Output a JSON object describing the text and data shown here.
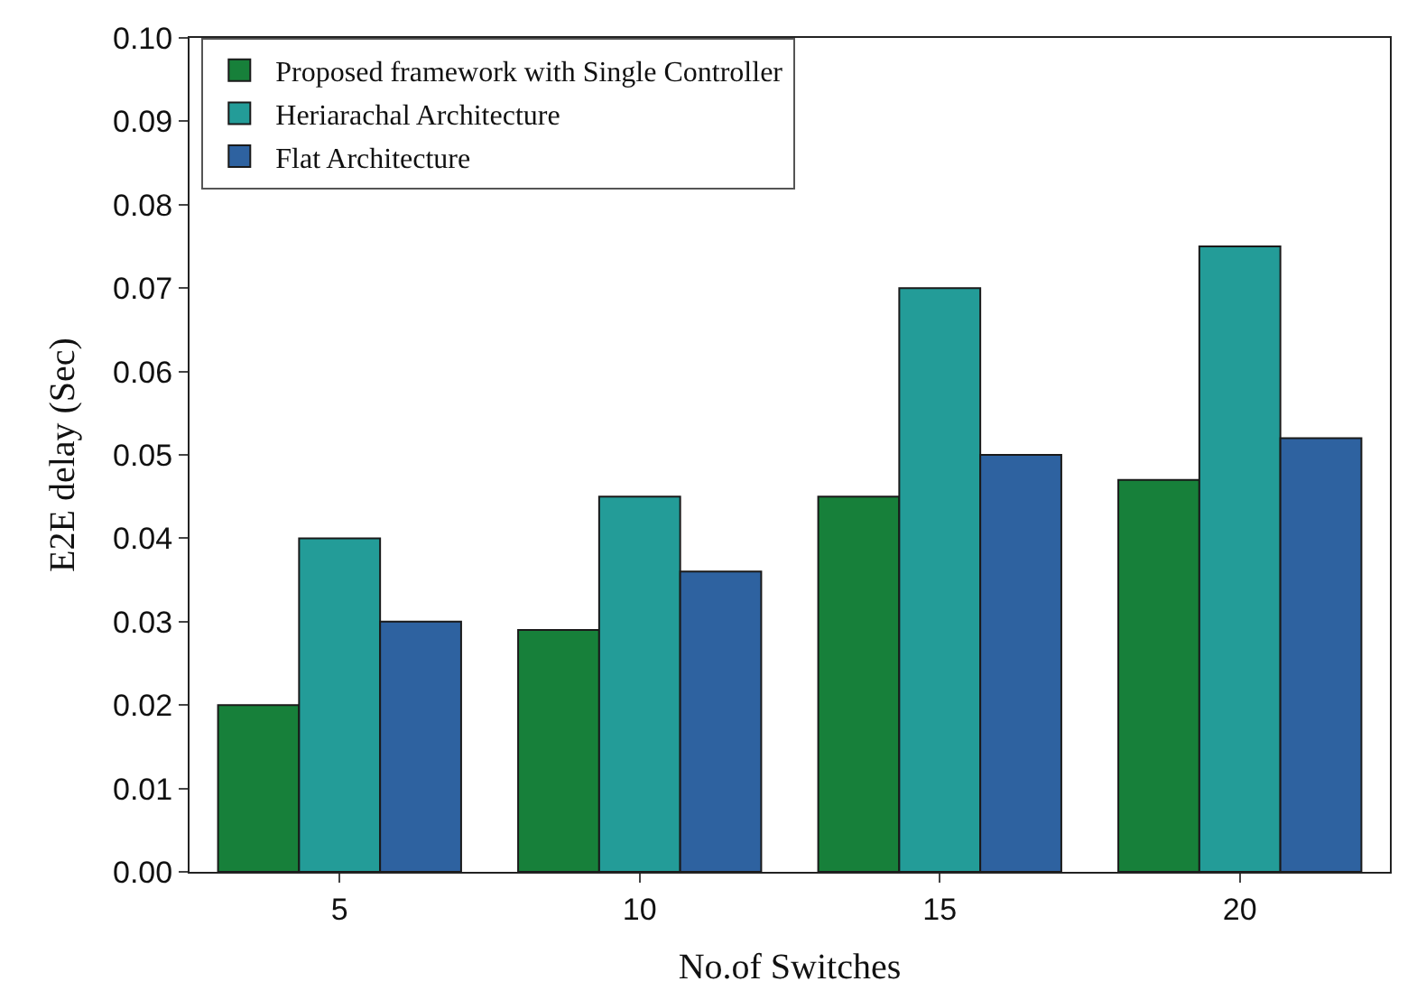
{
  "chart_data": {
    "type": "bar",
    "xlabel": "No.of Switches",
    "ylabel": "E2E delay (Sec)",
    "categories": [
      "5",
      "10",
      "15",
      "20"
    ],
    "series": [
      {
        "name": "Proposed framework with Single Controller",
        "color": "#17803a",
        "values": [
          0.02,
          0.029,
          0.045,
          0.047
        ]
      },
      {
        "name": "Heriarachal Architecture",
        "color": "#239c98",
        "values": [
          0.04,
          0.045,
          0.07,
          0.075
        ]
      },
      {
        "name": "Flat Architecture",
        "color": "#2e62a0",
        "values": [
          0.03,
          0.036,
          0.05,
          0.052
        ]
      }
    ],
    "ylim": [
      0,
      0.1
    ],
    "yticks": [
      {
        "value": 0,
        "label": "0.00"
      },
      {
        "value": 0.01,
        "label": "0.01"
      },
      {
        "value": 0.02,
        "label": "0.02"
      },
      {
        "value": 0.03,
        "label": "0.03"
      },
      {
        "value": 0.04,
        "label": "0.04"
      },
      {
        "value": 0.05,
        "label": "0.05"
      },
      {
        "value": 0.06,
        "label": "0.06"
      },
      {
        "value": 0.07,
        "label": "0.07"
      },
      {
        "value": 0.08,
        "label": "0.08"
      },
      {
        "value": 0.09,
        "label": "0.09"
      },
      {
        "value": 0.1,
        "label": "0.10"
      }
    ],
    "legend": "top left"
  }
}
